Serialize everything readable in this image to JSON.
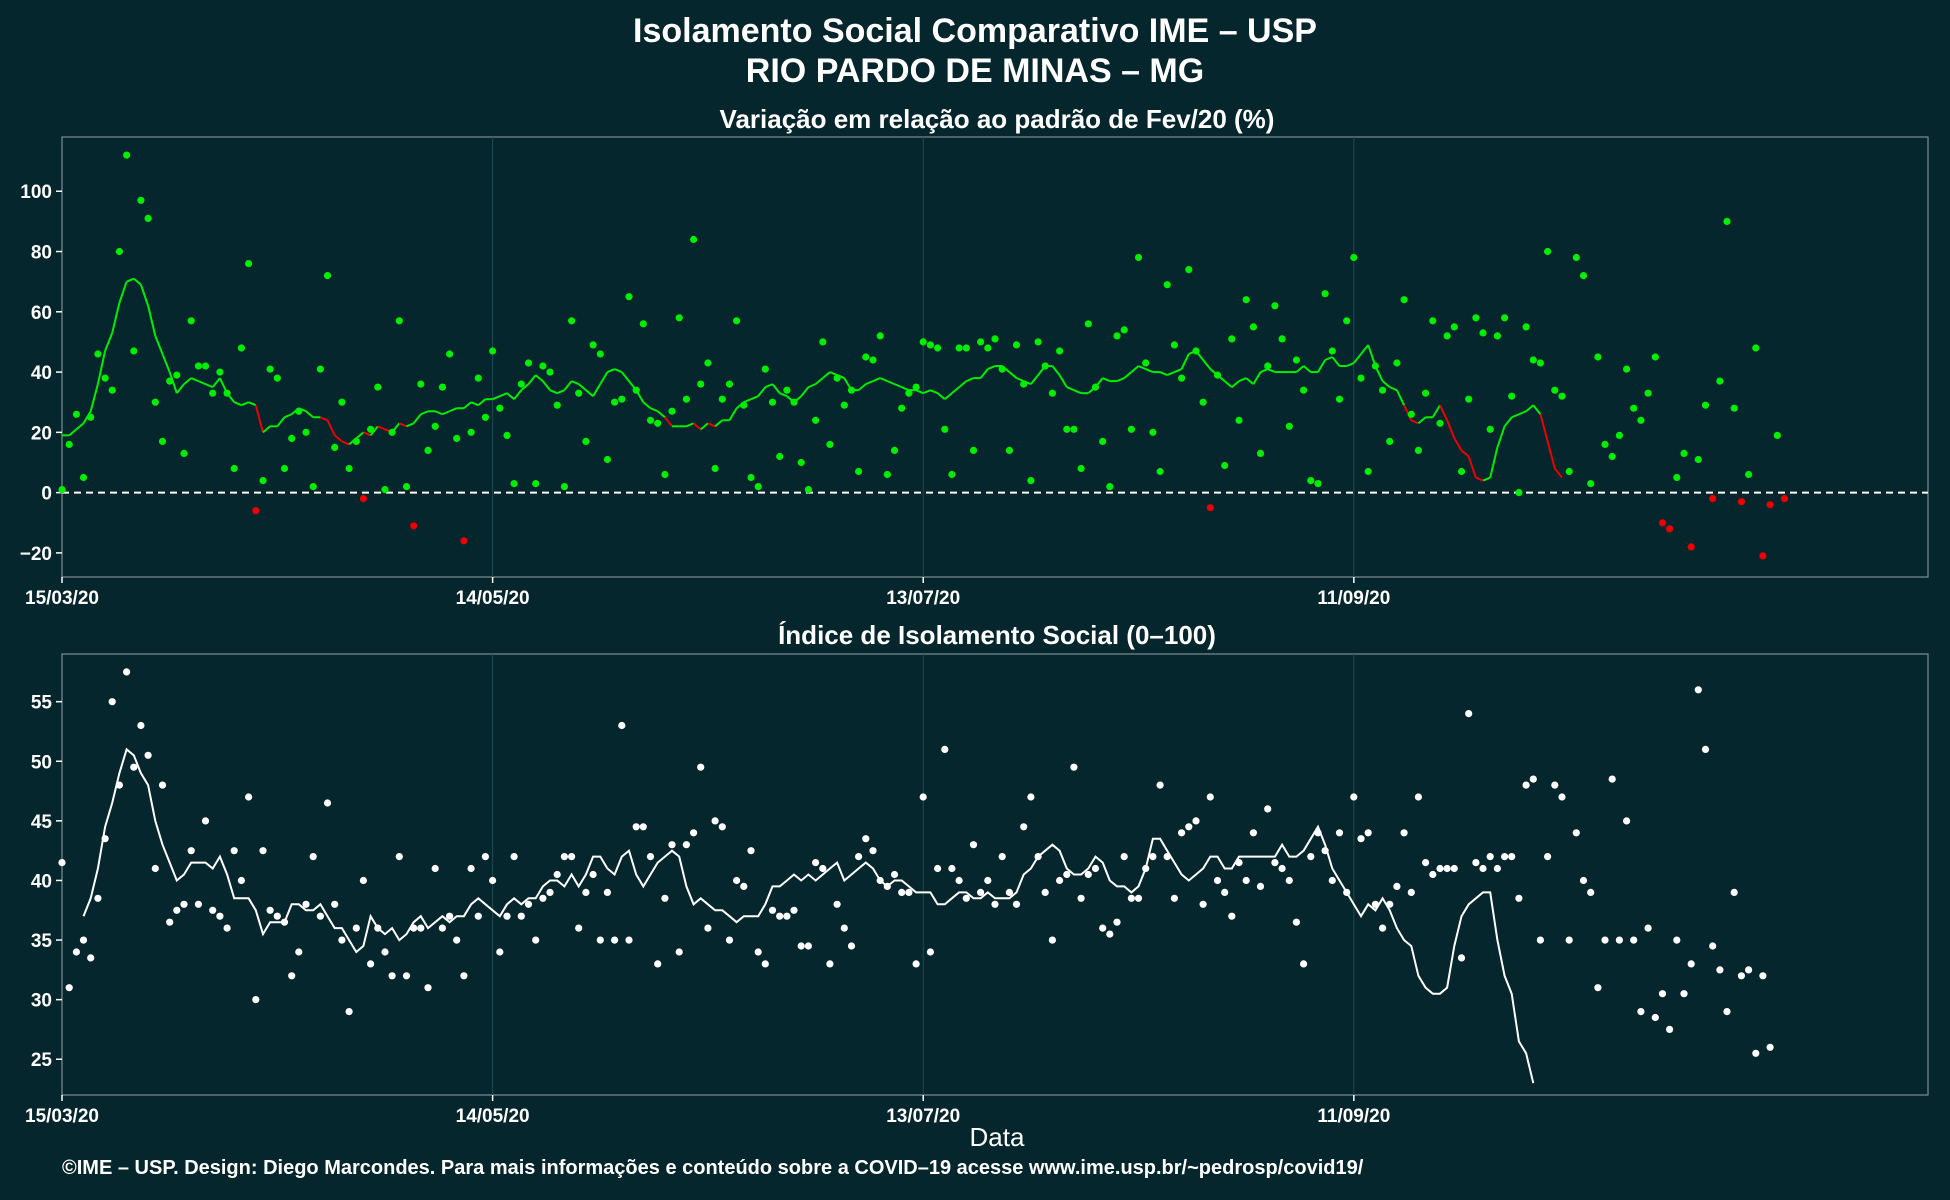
{
  "header": {
    "title": "Isolamento Social Comparativo IME – USP",
    "subtitle": "RIO PARDO DE MINAS – MG"
  },
  "footer": "©IME – USP. Design: Diego Marcondes. Para mais informações e conteúdo sobre a COVID–19 acesse www.ime.usp.br/~pedrosp/covid19/",
  "colors": {
    "background": "#06262d",
    "positive": "#00ee00",
    "negative": "#ee0000",
    "index": "#ffffff",
    "grid": "#1f4a52",
    "zero_line": "#ffffff"
  },
  "chart_data": [
    {
      "type": "scatter",
      "title": "Variação em relação ao padrão de Fev/20 (%)",
      "xlabel": "",
      "ylabel": "",
      "x_range": [
        "2020-03-15",
        "2020-11-30"
      ],
      "x_ticks": [
        "15/03/20",
        "14/05/20",
        "13/07/20",
        "11/09/20"
      ],
      "x_tick_days": [
        0,
        60,
        120,
        180
      ],
      "ylim": [
        -28,
        118
      ],
      "y_ticks": [
        -20,
        0,
        20,
        40,
        60,
        80,
        100
      ],
      "reference_line": 0,
      "grid": true,
      "series": [
        {
          "role": "daily_points",
          "values": [
            1,
            16,
            26,
            5,
            25,
            46,
            38,
            34,
            80,
            112,
            47,
            97,
            91,
            30,
            17,
            37,
            39,
            13,
            57,
            42,
            42,
            33,
            40,
            33,
            8,
            48,
            76,
            -6,
            4,
            41,
            38,
            8,
            18,
            27,
            20,
            2,
            41,
            72,
            15,
            30,
            8,
            17,
            -2,
            21,
            35,
            1,
            20,
            57,
            2,
            -11,
            36,
            14,
            22,
            35,
            46,
            18,
            -16,
            20,
            38,
            25,
            47,
            28,
            19,
            3,
            36,
            43,
            3,
            42,
            40,
            29,
            2,
            57,
            33,
            17,
            49,
            46,
            11,
            30,
            31,
            65,
            34,
            56,
            24,
            23,
            6,
            27,
            58,
            31,
            84,
            36,
            43,
            8,
            31,
            36,
            57,
            29,
            5,
            2,
            41,
            30,
            12,
            34,
            30,
            10,
            1,
            24,
            50,
            16,
            38,
            29,
            34,
            7,
            45,
            44,
            52,
            6,
            14,
            28,
            33,
            35,
            50,
            49,
            48,
            21,
            6,
            48,
            48,
            14,
            50,
            48,
            51,
            41,
            14,
            49,
            36,
            4,
            50,
            42,
            33,
            47,
            21,
            21,
            8,
            56,
            35,
            17,
            2,
            52,
            54,
            21,
            78,
            43,
            20,
            7,
            69,
            49,
            38,
            74,
            47,
            30,
            -5,
            39,
            9,
            51,
            24,
            64,
            55,
            13,
            42,
            62,
            51,
            22,
            44,
            34,
            4,
            3,
            66,
            47,
            31,
            57,
            78,
            38,
            7,
            42,
            34,
            17,
            43,
            64,
            26,
            14,
            33,
            57,
            23,
            52,
            55,
            7,
            31,
            58,
            53,
            21,
            52,
            58,
            32,
            0,
            55,
            44,
            43,
            80,
            34,
            32,
            7,
            78,
            72,
            3,
            45,
            16,
            12,
            19,
            41,
            28,
            24,
            33,
            45,
            -10,
            -12,
            5,
            13,
            -18,
            11,
            29,
            -2,
            37,
            90,
            28,
            -3,
            6,
            48,
            -21,
            -4,
            19,
            -2
          ]
        },
        {
          "role": "moving_average",
          "start_day": 0,
          "values": [
            19,
            19,
            21,
            23,
            27,
            36,
            47,
            53,
            63,
            70,
            71,
            69,
            62,
            52,
            46,
            40,
            33,
            36,
            38,
            37,
            36,
            35,
            38,
            33,
            30,
            29,
            30,
            29,
            20,
            22,
            22,
            25,
            26,
            28,
            27,
            25,
            25,
            24,
            19,
            17,
            16,
            18,
            20,
            19,
            22,
            21,
            20,
            23,
            22,
            23,
            26,
            27,
            27,
            26,
            27,
            28,
            28,
            30,
            29,
            31,
            31,
            32,
            33,
            31,
            34,
            36,
            39,
            37,
            34,
            33,
            34,
            37,
            36,
            34,
            32,
            36,
            40,
            41,
            40,
            37,
            34,
            30,
            28,
            27,
            25,
            22,
            22,
            22,
            23,
            21,
            23,
            22,
            24,
            24,
            28,
            30,
            31,
            32,
            35,
            36,
            33,
            32,
            30,
            32,
            35,
            36,
            38,
            40,
            39,
            38,
            34,
            34,
            36,
            37,
            38,
            37,
            36,
            35,
            34,
            34,
            33,
            34,
            33,
            31,
            33,
            35,
            37,
            38,
            38,
            41,
            42,
            42,
            40,
            38,
            37,
            36,
            39,
            42,
            42,
            39,
            35,
            34,
            33,
            33,
            35,
            38,
            37,
            37,
            38,
            40,
            42,
            41,
            40,
            40,
            39,
            40,
            41,
            46,
            47,
            44,
            41,
            39,
            37,
            35,
            37,
            38,
            36,
            40,
            41,
            40,
            40,
            40,
            40,
            42,
            40,
            40,
            44,
            45,
            42,
            42,
            43,
            46,
            49,
            42,
            37,
            35,
            34,
            29,
            24,
            23,
            25,
            25,
            29,
            24,
            18,
            14,
            12,
            5,
            4,
            5,
            15,
            22,
            25,
            26,
            27,
            29,
            26,
            17,
            8,
            5
          ]
        }
      ]
    },
    {
      "type": "scatter",
      "title": "Índice de Isolamento Social (0–100)",
      "xlabel": "Data",
      "ylabel": "",
      "x_range": [
        "2020-03-15",
        "2020-11-30"
      ],
      "x_ticks": [
        "15/03/20",
        "14/05/20",
        "13/07/20",
        "11/09/20"
      ],
      "x_tick_days": [
        0,
        60,
        120,
        180
      ],
      "ylim": [
        22,
        59
      ],
      "y_ticks": [
        25,
        30,
        35,
        40,
        45,
        50,
        55
      ],
      "grid": true,
      "series": [
        {
          "role": "daily_points",
          "values": [
            41.5,
            31,
            34,
            35,
            33.5,
            38.5,
            43.5,
            55,
            48,
            57.5,
            49.5,
            53,
            50.5,
            41,
            48,
            36.5,
            37.5,
            38,
            42.5,
            38,
            45,
            37.5,
            37,
            36,
            42.5,
            40,
            47,
            30,
            42.5,
            37.5,
            37,
            36.5,
            32,
            34,
            38,
            42,
            37,
            46.5,
            38,
            35,
            29,
            36,
            40,
            33,
            36,
            34,
            32,
            42,
            32,
            36,
            36,
            31,
            41,
            36,
            37,
            35,
            32,
            41,
            37,
            42,
            40,
            34,
            37,
            42,
            37,
            38,
            35,
            38.5,
            39,
            40.5,
            42,
            42,
            36,
            39,
            40.5,
            35,
            39,
            35,
            53,
            35,
            44.5,
            44.5,
            42,
            33,
            38.5,
            43,
            34,
            43,
            44,
            49.5,
            36,
            45,
            44.5,
            35,
            40,
            39.5,
            42.5,
            34,
            33,
            37.5,
            37,
            37,
            37.5,
            34.5,
            34.5,
            41.5,
            41,
            33,
            38,
            36,
            34.5,
            42,
            43.5,
            42.5,
            40,
            39.5,
            40.5,
            39,
            39,
            33,
            47,
            34,
            41,
            51,
            41,
            40,
            38.5,
            43,
            39,
            40,
            38,
            42,
            39,
            38,
            44.5,
            47,
            42,
            39,
            35,
            40,
            40.5,
            49.5,
            38.5,
            40.5,
            41,
            36,
            35.5,
            36.5,
            42,
            38.5,
            38.5,
            41,
            42,
            48,
            42,
            38.5,
            44,
            44.5,
            45,
            38,
            47,
            40,
            39,
            37,
            41.5,
            40,
            44,
            39.5,
            46,
            41.5,
            41,
            40,
            36.5,
            33,
            42,
            44,
            42.5,
            40,
            44,
            39,
            47,
            43.5,
            44,
            38,
            36,
            38,
            39.5,
            44,
            39,
            47,
            41.5,
            40.5,
            41,
            41,
            41,
            33.5,
            54,
            41.5,
            41,
            42,
            41,
            42,
            42,
            38.5,
            48,
            48.5,
            35,
            42,
            48,
            47,
            35,
            44,
            40,
            39,
            31,
            35,
            48.5,
            35,
            45,
            35,
            29,
            36,
            28.5,
            30.5,
            27.5,
            35,
            30.5,
            33,
            56,
            51,
            34.5,
            32.5,
            29,
            39,
            32,
            32.5,
            25.5,
            32,
            26
          ]
        },
        {
          "role": "moving_average",
          "start_day": 3,
          "values": [
            37,
            38.5,
            41,
            44.5,
            46.5,
            49,
            51,
            50.5,
            49,
            48,
            45,
            43,
            41.5,
            40,
            40.5,
            41.5,
            41.5,
            41.5,
            41,
            42,
            40.5,
            38.5,
            38.5,
            38.5,
            37.5,
            35.5,
            36.5,
            36.5,
            36.5,
            38,
            38,
            37.5,
            37.5,
            38,
            37,
            36,
            36,
            35,
            34,
            34.5,
            37,
            36,
            35.5,
            36,
            35,
            35.5,
            36.5,
            37,
            36,
            36.5,
            37,
            36.5,
            37,
            37,
            38,
            38.5,
            38,
            37.5,
            37,
            38,
            38.5,
            38,
            38.5,
            38.5,
            39.5,
            40,
            40,
            39.5,
            40.5,
            39.5,
            40.5,
            42,
            42,
            41,
            40.5,
            42,
            42.5,
            40.5,
            39.5,
            40.5,
            41.5,
            42,
            42.5,
            42,
            39.5,
            38,
            38.5,
            38,
            37.5,
            37.5,
            37,
            36.5,
            37,
            37,
            37,
            38,
            39.5,
            39.5,
            40,
            40.5,
            40,
            40.5,
            40,
            40.5,
            41,
            41.5,
            40,
            40.5,
            41,
            41.5,
            41,
            40,
            39.5,
            40,
            40,
            39.5,
            39,
            39,
            39,
            38,
            38,
            38.5,
            39,
            39,
            38.5,
            38.5,
            39,
            38.5,
            38.5,
            38.5,
            39,
            40.5,
            41,
            42,
            42.5,
            43,
            42.5,
            41,
            40.5,
            40.5,
            41,
            42,
            41.5,
            40,
            39.5,
            39.5,
            39,
            39.5,
            41,
            43.5,
            43.5,
            42.5,
            41.5,
            40.5,
            40,
            40.5,
            41,
            42,
            42,
            41,
            41,
            42,
            42,
            42,
            42,
            42,
            42,
            43,
            42,
            42,
            42.5,
            43.5,
            44.5,
            43,
            41,
            40,
            39,
            38,
            37,
            38,
            37.5,
            38.5,
            37.5,
            36,
            35,
            34.5,
            32,
            31,
            30.5,
            30.5,
            31,
            34.5,
            37,
            38,
            38.5,
            39,
            39,
            35,
            32,
            30.5,
            26.5,
            25.5,
            23
          ]
        }
      ]
    }
  ]
}
